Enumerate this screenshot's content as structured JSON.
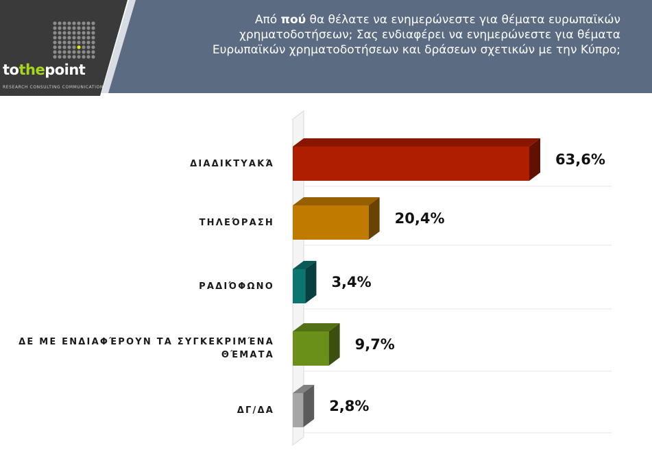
{
  "header": {
    "question_pre": "Από ",
    "question_bold": "πού",
    "question_post": " θα θέλατε να ενημερώνεστε για θέματα ευρωπαϊκών χρηματοδοτήσεων; Σας ενδιαφέρει να ενημερώνεστε για θέματα Ευρωπαϊκών χρηματοδοτήσεων και δράσεων σχετικών με την Κύπρο;",
    "background_color": "#5a6b82"
  },
  "logo": {
    "brand_pre": "to",
    "brand_accent": "the",
    "brand_post": "point",
    "tagline": "RESEARCH CONSULTING COMMUNICATION",
    "background_color": "#3a3a3a"
  },
  "chart_data": {
    "type": "bar",
    "orientation": "horizontal",
    "categories": [
      "ΔΙΑΔΙΚΤΥΑΚΆ",
      "ΤΗΛΕΌΡΑΣΗ",
      "ΡΑΔΙΌΦΩΝΟ",
      "ΔΕ ΜΕ ΕΝΔΙΑΦΈΡΟΥΝ ΤΑ ΣΥΓΚΕΚΡΙΜΈΝΑ ΘΈΜΑΤΑ",
      "ΔΓ/ΔΑ"
    ],
    "values": [
      63.6,
      20.4,
      3.4,
      9.7,
      2.8
    ],
    "value_labels": [
      "63,6%",
      "20,4%",
      "3,4%",
      "9,7%",
      "2,8%"
    ],
    "colors": [
      "#b01e00",
      "#c07a00",
      "#0d7570",
      "#6b901a",
      "#a6a6a6"
    ],
    "xlim": [
      0,
      63.6
    ],
    "grid": false,
    "legend": "none"
  }
}
